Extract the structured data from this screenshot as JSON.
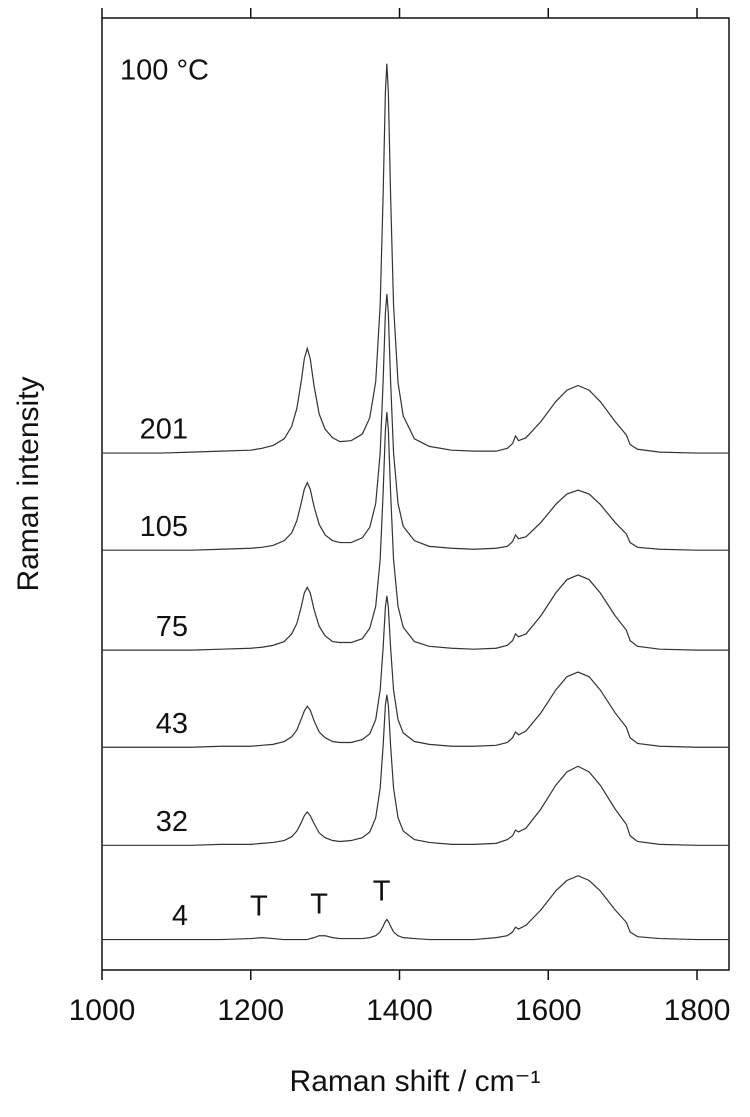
{
  "chart_data": {
    "type": "line",
    "annotation_text": "100 °C",
    "xlabel": "Raman shift / cm⁻¹",
    "ylabel": "Raman intensity",
    "xlim": [
      1000,
      1843
    ],
    "ylim": [
      0,
      100
    ],
    "xticks": [
      1000,
      1200,
      1400,
      1600,
      1800
    ],
    "annotations": [
      {
        "text": "T",
        "x": 1215
      },
      {
        "text": "T",
        "x": 1296
      },
      {
        "text": "T",
        "x": 1380
      }
    ],
    "x": [
      1000,
      1040,
      1080,
      1120,
      1160,
      1200,
      1215,
      1230,
      1245,
      1255,
      1262,
      1268,
      1272,
      1276,
      1280,
      1285,
      1292,
      1300,
      1310,
      1320,
      1335,
      1350,
      1360,
      1368,
      1374,
      1378,
      1381,
      1383,
      1385,
      1388,
      1392,
      1398,
      1405,
      1420,
      1440,
      1470,
      1500,
      1530,
      1545,
      1552,
      1556,
      1560,
      1570,
      1590,
      1610,
      1625,
      1640,
      1655,
      1670,
      1690,
      1705,
      1710,
      1720,
      1750,
      1800,
      1843
    ],
    "series": [
      {
        "name": "201",
        "color": "#333333",
        "values": [
          54.3,
          54.3,
          54.3,
          54.4,
          54.5,
          54.6,
          54.8,
          55.1,
          55.8,
          57.1,
          59.0,
          61.9,
          64.2,
          65.3,
          64.2,
          61.4,
          58.4,
          56.8,
          55.9,
          55.5,
          55.6,
          56.3,
          58.0,
          61.8,
          69.8,
          81.5,
          92.2,
          95.2,
          92.2,
          81.4,
          69.8,
          61.7,
          58.2,
          55.8,
          55.0,
          54.6,
          54.5,
          54.5,
          54.8,
          55.3,
          56.1,
          55.6,
          55.9,
          57.6,
          59.7,
          60.9,
          61.4,
          60.9,
          59.7,
          57.6,
          56.2,
          55.2,
          54.7,
          54.4,
          54.3,
          54.3
        ]
      },
      {
        "name": "105",
        "color": "#333333",
        "values": [
          44.1,
          44.1,
          44.1,
          44.1,
          44.2,
          44.3,
          44.4,
          44.6,
          45.1,
          45.9,
          47.2,
          49.1,
          50.5,
          51.2,
          50.5,
          48.7,
          46.8,
          45.7,
          45.1,
          44.9,
          44.9,
          45.4,
          46.5,
          49.0,
          54.3,
          61.9,
          69.0,
          71.0,
          69.0,
          61.9,
          54.3,
          49.0,
          46.6,
          45.1,
          44.5,
          44.3,
          44.2,
          44.3,
          44.5,
          45.0,
          45.7,
          45.3,
          45.5,
          47.0,
          48.9,
          50.0,
          50.4,
          50.0,
          48.9,
          47.0,
          45.8,
          44.9,
          44.4,
          44.2,
          44.1,
          44.1
        ]
      },
      {
        "name": "75",
        "color": "#333333",
        "values": [
          33.6,
          33.6,
          33.6,
          33.6,
          33.7,
          33.8,
          33.9,
          34.1,
          34.5,
          35.3,
          36.4,
          38.2,
          39.6,
          40.2,
          39.6,
          37.9,
          36.1,
          35.1,
          34.5,
          34.4,
          34.4,
          34.8,
          35.9,
          38.2,
          43.1,
          50.2,
          56.7,
          58.6,
          56.7,
          50.2,
          43.1,
          38.2,
          36.0,
          34.5,
          34.0,
          33.8,
          33.7,
          33.8,
          34.1,
          34.6,
          35.3,
          35.0,
          35.3,
          37.2,
          39.6,
          41.0,
          41.5,
          41.0,
          39.6,
          37.2,
          35.7,
          34.6,
          34.0,
          33.7,
          33.6,
          33.6
        ]
      },
      {
        "name": "43",
        "color": "#333333",
        "values": [
          23.4,
          23.4,
          23.4,
          23.4,
          23.5,
          23.5,
          23.6,
          23.7,
          24.0,
          24.5,
          25.2,
          26.4,
          27.2,
          27.7,
          27.3,
          26.2,
          25.0,
          24.4,
          24.0,
          23.9,
          23.9,
          24.2,
          24.8,
          26.3,
          29.4,
          33.9,
          38.1,
          39.3,
          38.1,
          33.9,
          29.4,
          26.3,
          24.9,
          24.0,
          23.7,
          23.5,
          23.5,
          23.6,
          23.9,
          24.4,
          25.0,
          24.7,
          25.1,
          27.0,
          29.4,
          30.8,
          31.3,
          30.8,
          29.4,
          27.0,
          25.5,
          24.4,
          23.8,
          23.5,
          23.4,
          23.4
        ]
      },
      {
        "name": "32",
        "color": "#333333",
        "values": [
          13.1,
          13.1,
          13.1,
          13.1,
          13.2,
          13.2,
          13.3,
          13.4,
          13.6,
          14.0,
          14.6,
          15.5,
          16.2,
          16.6,
          16.2,
          15.4,
          14.4,
          13.9,
          13.6,
          13.5,
          13.6,
          13.9,
          14.5,
          16.0,
          19.1,
          23.6,
          27.8,
          28.9,
          27.8,
          23.6,
          19.1,
          16.0,
          14.6,
          13.7,
          13.4,
          13.2,
          13.2,
          13.3,
          13.7,
          14.1,
          14.7,
          14.5,
          14.9,
          16.9,
          19.4,
          20.8,
          21.4,
          20.8,
          19.4,
          16.9,
          15.3,
          14.1,
          13.5,
          13.2,
          13.1,
          13.1
        ]
      },
      {
        "name": "4",
        "color": "#333333",
        "values": [
          3.2,
          3.2,
          3.2,
          3.2,
          3.2,
          3.3,
          3.4,
          3.3,
          3.2,
          3.2,
          3.2,
          3.2,
          3.2,
          3.2,
          3.3,
          3.4,
          3.6,
          3.6,
          3.4,
          3.3,
          3.3,
          3.3,
          3.4,
          3.6,
          4.0,
          4.6,
          5.1,
          5.3,
          5.1,
          4.6,
          4.0,
          3.6,
          3.4,
          3.3,
          3.2,
          3.2,
          3.2,
          3.4,
          3.6,
          4.0,
          4.5,
          4.3,
          4.7,
          6.3,
          8.3,
          9.4,
          9.9,
          9.4,
          8.3,
          6.3,
          5.0,
          4.0,
          3.5,
          3.3,
          3.2,
          3.2
        ]
      }
    ]
  }
}
